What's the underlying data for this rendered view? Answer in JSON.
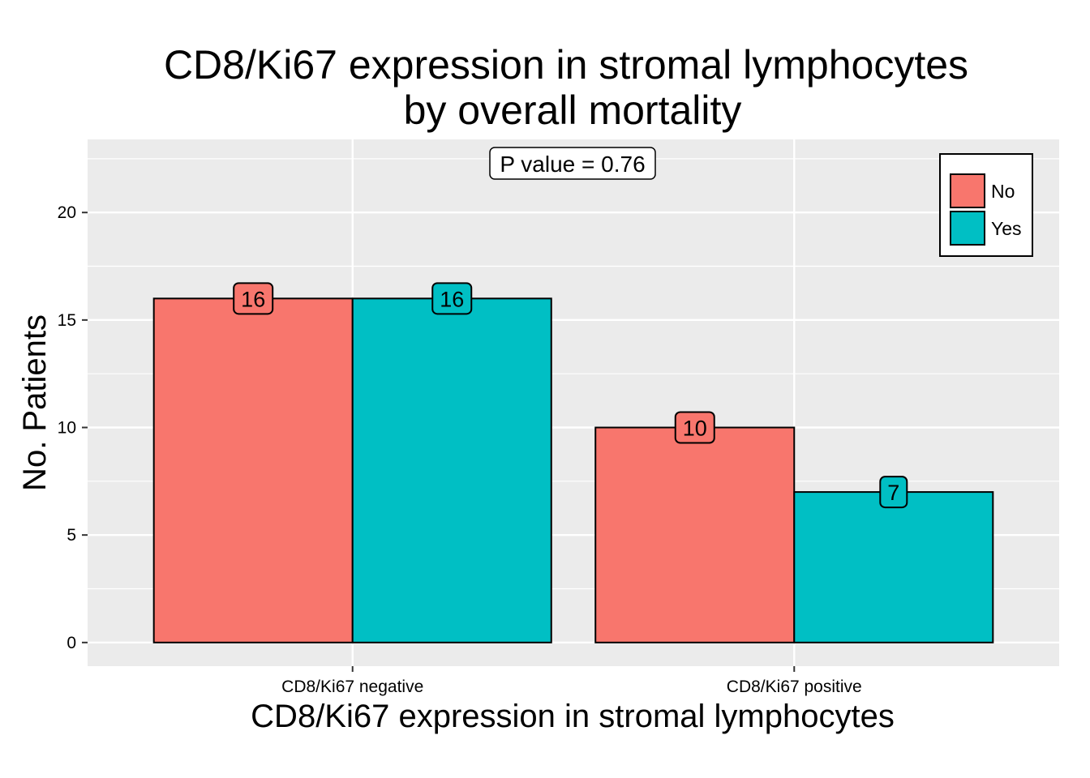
{
  "chart_data": {
    "type": "bar",
    "title": [
      "CD8/Ki67 expression in stromal lymphocytes",
      "by overall mortality"
    ],
    "xlabel": "CD8/Ki67 expression in stromal lymphocytes",
    "ylabel": "No. Patients",
    "categories": [
      "CD8/Ki67 negative",
      "CD8/Ki67 positive"
    ],
    "series": [
      {
        "name": "No",
        "color": "#F8766D",
        "values": [
          16,
          10
        ]
      },
      {
        "name": "Yes",
        "color": "#00BFC4",
        "values": [
          16,
          7
        ]
      }
    ],
    "ylim": [
      -1.1,
      23.4
    ],
    "yticks": [
      0,
      5,
      10,
      15,
      20
    ],
    "annotation": "P value = 0.76",
    "legend_position": "top-right",
    "grid": true,
    "panel_color": "#EBEBEB"
  }
}
